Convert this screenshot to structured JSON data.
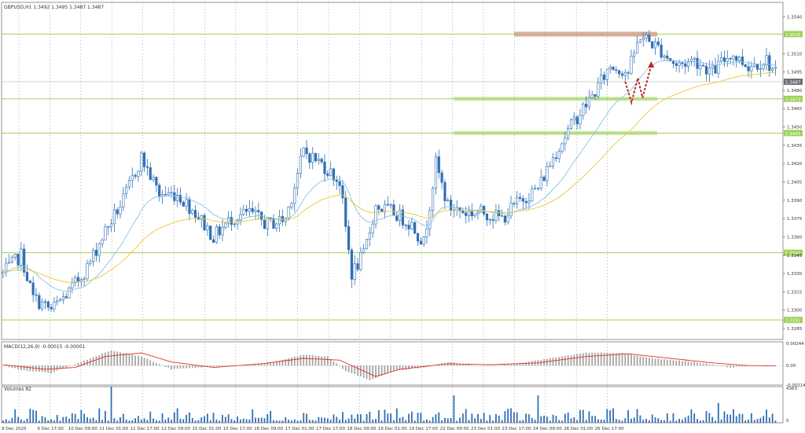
{
  "chart_data": {
    "type": "candlestick",
    "symbol_header": "GBPUSD,H1  1.3492 1.3495 1.3487 1.3487",
    "price_axis": {
      "ylim": [
        1.3276,
        1.3552
      ],
      "tick_labels": [
        "1.3540",
        "1.3510",
        "1.3495",
        "1.3480",
        "1.3465",
        "1.3450",
        "1.3435",
        "1.3420",
        "1.3405",
        "1.3390",
        "1.3375",
        "1.3360",
        "1.3345",
        "1.3330",
        "1.3315",
        "1.3300",
        "1.3285"
      ],
      "tick_values": [
        1.354,
        1.351,
        1.3495,
        1.348,
        1.3465,
        1.345,
        1.3435,
        1.342,
        1.3405,
        1.339,
        1.3375,
        1.336,
        1.3345,
        1.333,
        1.3315,
        1.33,
        1.3285
      ]
    },
    "current_price": {
      "value": 1.3487,
      "label": "1.3487"
    },
    "levels": [
      {
        "value": 1.3526,
        "label": "1.3526",
        "zone": "resistance"
      },
      {
        "value": 1.3473,
        "label": "1.3473",
        "zone": "support"
      },
      {
        "value": 1.3445,
        "label": "1.3445",
        "zone": "support"
      },
      {
        "value": 1.3347,
        "label": "1.3347",
        "zone": "none"
      },
      {
        "value": 1.3292,
        "label": "1.3292",
        "zone": "none"
      }
    ],
    "time_labels": [
      "9 Dec 2025",
      "9 Dec 17:00",
      "10 Dec 09:00",
      "11 Dec 01:00",
      "11 Dec 17:00",
      "12 Dec 09:00",
      "15 Dec 01:00",
      "15 Dec 17:00",
      "16 Dec 09:00",
      "17 Dec 01:00",
      "17 Dec 17:00",
      "18 Dec 09:00",
      "19 Dec 01:00",
      "19 Dec 17:00",
      "22 Dec 09:00",
      "23 Dec 01:00",
      "23 Dec 17:00",
      "24 Dec 09:00",
      "26 Dec 01:00",
      "26 Dec 17:00"
    ],
    "anchors": [
      [
        0,
        1.333
      ],
      [
        6,
        1.3345
      ],
      [
        10,
        1.331
      ],
      [
        16,
        1.33
      ],
      [
        22,
        1.3315
      ],
      [
        28,
        1.3335
      ],
      [
        34,
        1.3365
      ],
      [
        40,
        1.339
      ],
      [
        46,
        1.3425
      ],
      [
        52,
        1.3395
      ],
      [
        58,
        1.3395
      ],
      [
        64,
        1.338
      ],
      [
        70,
        1.336
      ],
      [
        76,
        1.3375
      ],
      [
        82,
        1.338
      ],
      [
        88,
        1.337
      ],
      [
        94,
        1.3375
      ],
      [
        100,
        1.343
      ],
      [
        106,
        1.342
      ],
      [
        112,
        1.3405
      ],
      [
        116,
        1.333
      ],
      [
        120,
        1.3345
      ],
      [
        124,
        1.3385
      ],
      [
        130,
        1.338
      ],
      [
        136,
        1.337
      ],
      [
        140,
        1.3355
      ],
      [
        144,
        1.342
      ],
      [
        148,
        1.3385
      ],
      [
        154,
        1.338
      ],
      [
        160,
        1.338
      ],
      [
        166,
        1.3375
      ],
      [
        172,
        1.339
      ],
      [
        178,
        1.34
      ],
      [
        184,
        1.343
      ],
      [
        190,
        1.3455
      ],
      [
        196,
        1.3475
      ],
      [
        202,
        1.35
      ],
      [
        208,
        1.3495
      ],
      [
        212,
        1.3525
      ],
      [
        218,
        1.3515
      ],
      [
        224,
        1.35
      ],
      [
        230,
        1.3505
      ],
      [
        236,
        1.3495
      ],
      [
        242,
        1.351
      ],
      [
        248,
        1.35
      ],
      [
        254,
        1.3505
      ],
      [
        258,
        1.349
      ]
    ],
    "macd": {
      "label": "MACD(12,26,9) -0.00015 -0.00001",
      "ylim": [
        -0.00214,
        0.00244
      ],
      "tick_labels": [
        "0.00244",
        "0.00",
        "-0.00214"
      ],
      "tick_values": [
        0.00244,
        0,
        -0.00214
      ],
      "signal_anchors": [
        [
          0,
          0.0001
        ],
        [
          14,
          -0.0004
        ],
        [
          24,
          -0.0002
        ],
        [
          34,
          0.001
        ],
        [
          46,
          0.0014
        ],
        [
          56,
          0.0004
        ],
        [
          70,
          -0.0002
        ],
        [
          86,
          0.0002
        ],
        [
          100,
          0.0008
        ],
        [
          112,
          0.0006
        ],
        [
          124,
          -0.0012
        ],
        [
          132,
          -0.0004
        ],
        [
          148,
          0.0002
        ],
        [
          162,
          0.0001
        ],
        [
          178,
          0.0003
        ],
        [
          194,
          0.001
        ],
        [
          208,
          0.0013
        ],
        [
          222,
          0.0008
        ],
        [
          236,
          0.0003
        ],
        [
          248,
          0.0
        ],
        [
          258,
          -1e-05
        ]
      ],
      "hist_anchors": [
        [
          0,
          0.0
        ],
        [
          8,
          -0.0006
        ],
        [
          16,
          -0.0008
        ],
        [
          26,
          0.0004
        ],
        [
          36,
          0.0017
        ],
        [
          46,
          0.001
        ],
        [
          56,
          -0.0004
        ],
        [
          66,
          -0.0002
        ],
        [
          78,
          0.0
        ],
        [
          90,
          0.0004
        ],
        [
          100,
          0.0012
        ],
        [
          108,
          0.001
        ],
        [
          114,
          -0.0006
        ],
        [
          122,
          -0.0016
        ],
        [
          130,
          -0.0006
        ],
        [
          140,
          -0.0002
        ],
        [
          148,
          0.0004
        ],
        [
          158,
          0.0
        ],
        [
          170,
          0.0002
        ],
        [
          182,
          0.0008
        ],
        [
          194,
          0.0014
        ],
        [
          206,
          0.0014
        ],
        [
          216,
          0.0008
        ],
        [
          230,
          0.0004
        ],
        [
          242,
          -0.0002
        ],
        [
          250,
          0.0
        ],
        [
          258,
          -0.00015
        ]
      ]
    },
    "volume": {
      "label": "Volumes 82",
      "ylim": [
        0,
        4363
      ],
      "tick_labels": [
        "4363",
        "0"
      ],
      "tick_values": [
        4363,
        0
      ]
    },
    "colors": {
      "bull": "#2f6fb5",
      "bear": "#2f6fb5",
      "ma_fast": "#87c3e6",
      "ma_slow": "#f0c530",
      "level": "#9ed25a",
      "resistance_zone": "#d88a8a",
      "macd_hist": "#a6a6a6",
      "macd_signal": "#e03030",
      "arrow": "#c0262b",
      "volume": "#2f6fb5"
    }
  }
}
